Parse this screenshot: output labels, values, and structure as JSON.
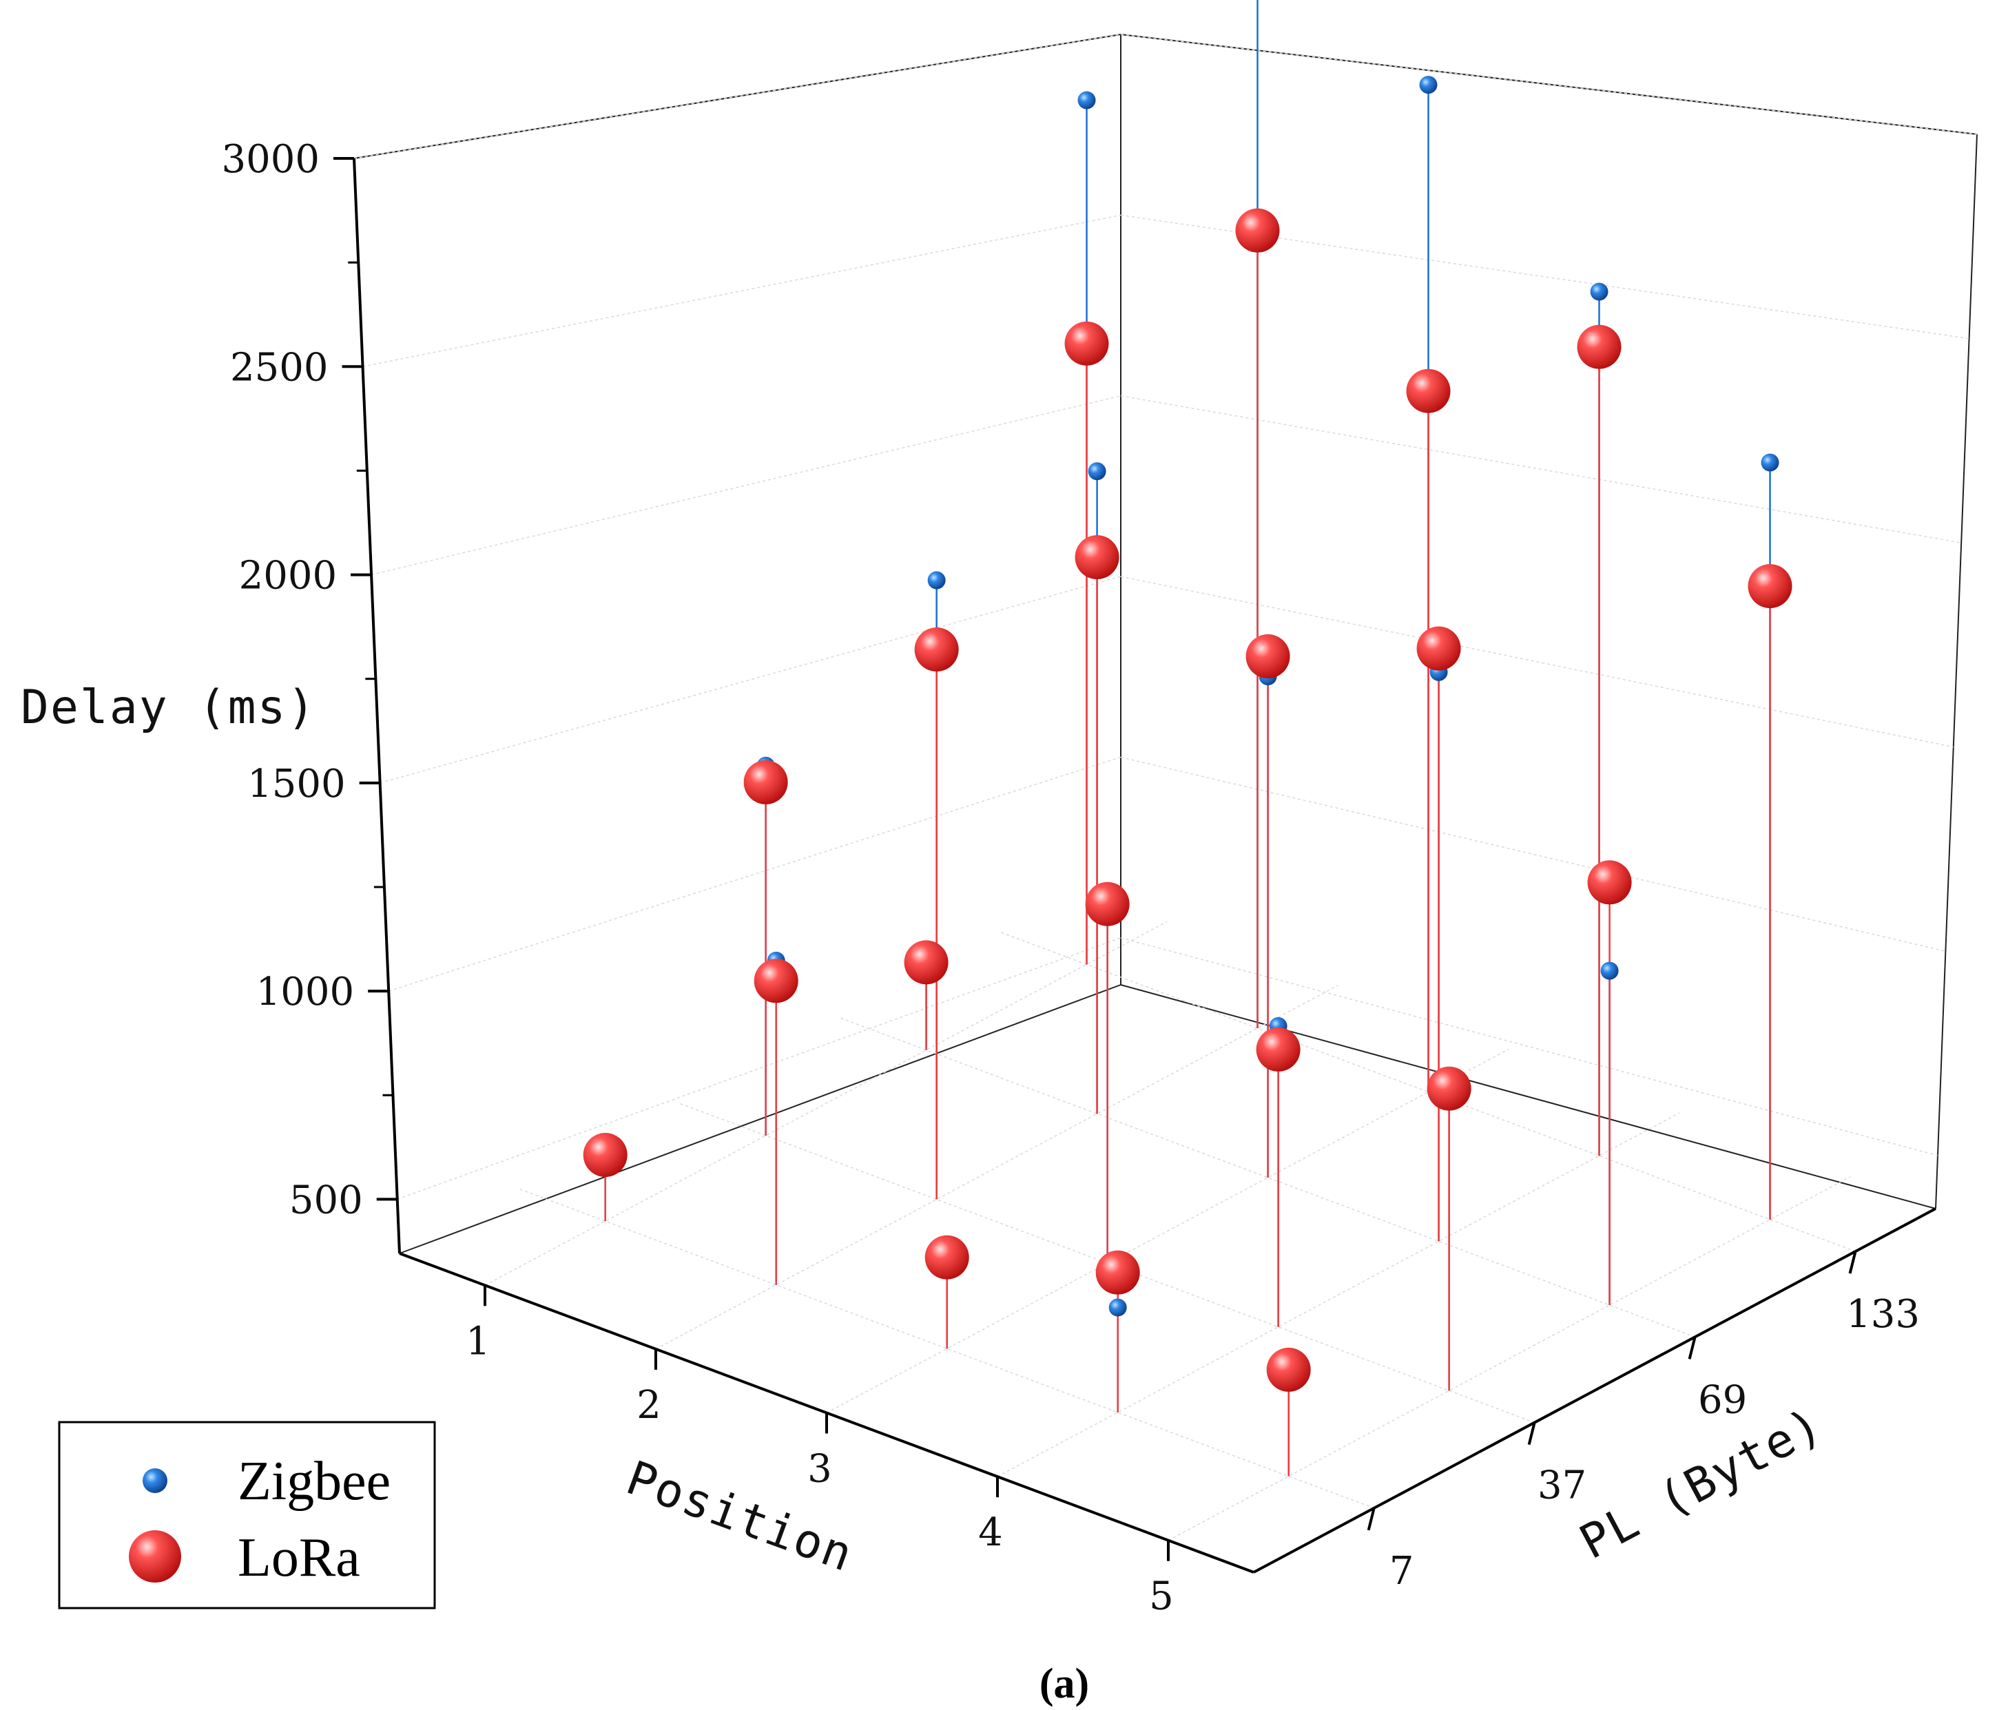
{
  "chart_data": {
    "type": "scatter-3d",
    "xlabel": "Position",
    "ylabel": "PL (Byte)",
    "zlabel": "Delay (ms)",
    "x_ticks": [
      "1",
      "2",
      "3",
      "4",
      "5"
    ],
    "y_ticks": [
      "7",
      "37",
      "69",
      "133"
    ],
    "z_ticks": [
      "500",
      "1000",
      "1500",
      "2000",
      "2500",
      "3000"
    ],
    "zlim": [
      370,
      3000
    ],
    "grid": true,
    "legend_position": "bottom-left",
    "caption": "(a)",
    "series": [
      {
        "name": "Zigbee",
        "color": "#1a6fd6",
        "points": [
          {
            "x": 1,
            "y": "7",
            "z": 530
          },
          {
            "x": 2,
            "y": "7",
            "z": 1170
          },
          {
            "x": 3,
            "y": "7",
            "z": 630
          },
          {
            "x": 4,
            "y": "7",
            "z": 640
          },
          {
            "x": 5,
            "y": "7",
            "z": 620
          },
          {
            "x": 1,
            "y": "37",
            "z": 1260
          },
          {
            "x": 2,
            "y": "37",
            "z": 1890
          },
          {
            "x": 3,
            "y": "37",
            "z": 1240
          },
          {
            "x": 4,
            "y": "37",
            "z": 1140
          },
          {
            "x": 5,
            "y": "37",
            "z": 1140
          },
          {
            "x": 1,
            "y": "69",
            "z": 610
          },
          {
            "x": 2,
            "y": "69",
            "z": 1940
          },
          {
            "x": 3,
            "y": "69",
            "z": 1620
          },
          {
            "x": 4,
            "y": "69",
            "z": 1820
          },
          {
            "x": 5,
            "y": "69",
            "z": 1240
          },
          {
            "x": 1,
            "y": "133",
            "z": 2430
          },
          {
            "x": 2,
            "y": "133",
            "z": 2990
          },
          {
            "x": 3,
            "y": "133",
            "z": 2870
          },
          {
            "x": 4,
            "y": "133",
            "z": 2560
          },
          {
            "x": 5,
            "y": "133",
            "z": 2330
          }
        ]
      },
      {
        "name": "LoRa",
        "color": "#f03c3c",
        "points": [
          {
            "x": 1,
            "y": "7",
            "z": 530
          },
          {
            "x": 2,
            "y": "7",
            "z": 1120
          },
          {
            "x": 3,
            "y": "7",
            "z": 600
          },
          {
            "x": 4,
            "y": "7",
            "z": 730
          },
          {
            "x": 5,
            "y": "7",
            "z": 650
          },
          {
            "x": 1,
            "y": "37",
            "z": 1220
          },
          {
            "x": 2,
            "y": "37",
            "z": 1720
          },
          {
            "x": 3,
            "y": "37",
            "z": 1270
          },
          {
            "x": 4,
            "y": "37",
            "z": 1080
          },
          {
            "x": 5,
            "y": "37",
            "z": 1160
          },
          {
            "x": 1,
            "y": "69",
            "z": 580
          },
          {
            "x": 2,
            "y": "69",
            "z": 1730
          },
          {
            "x": 3,
            "y": "69",
            "z": 1670
          },
          {
            "x": 4,
            "y": "69",
            "z": 1880
          },
          {
            "x": 5,
            "y": "69",
            "z": 1470
          },
          {
            "x": 1,
            "y": "133",
            "z": 1850
          },
          {
            "x": 2,
            "y": "133",
            "z": 2310
          },
          {
            "x": 3,
            "y": "133",
            "z": 2110
          },
          {
            "x": 4,
            "y": "133",
            "z": 2420
          },
          {
            "x": 5,
            "y": "133",
            "z": 2010
          }
        ]
      }
    ]
  }
}
